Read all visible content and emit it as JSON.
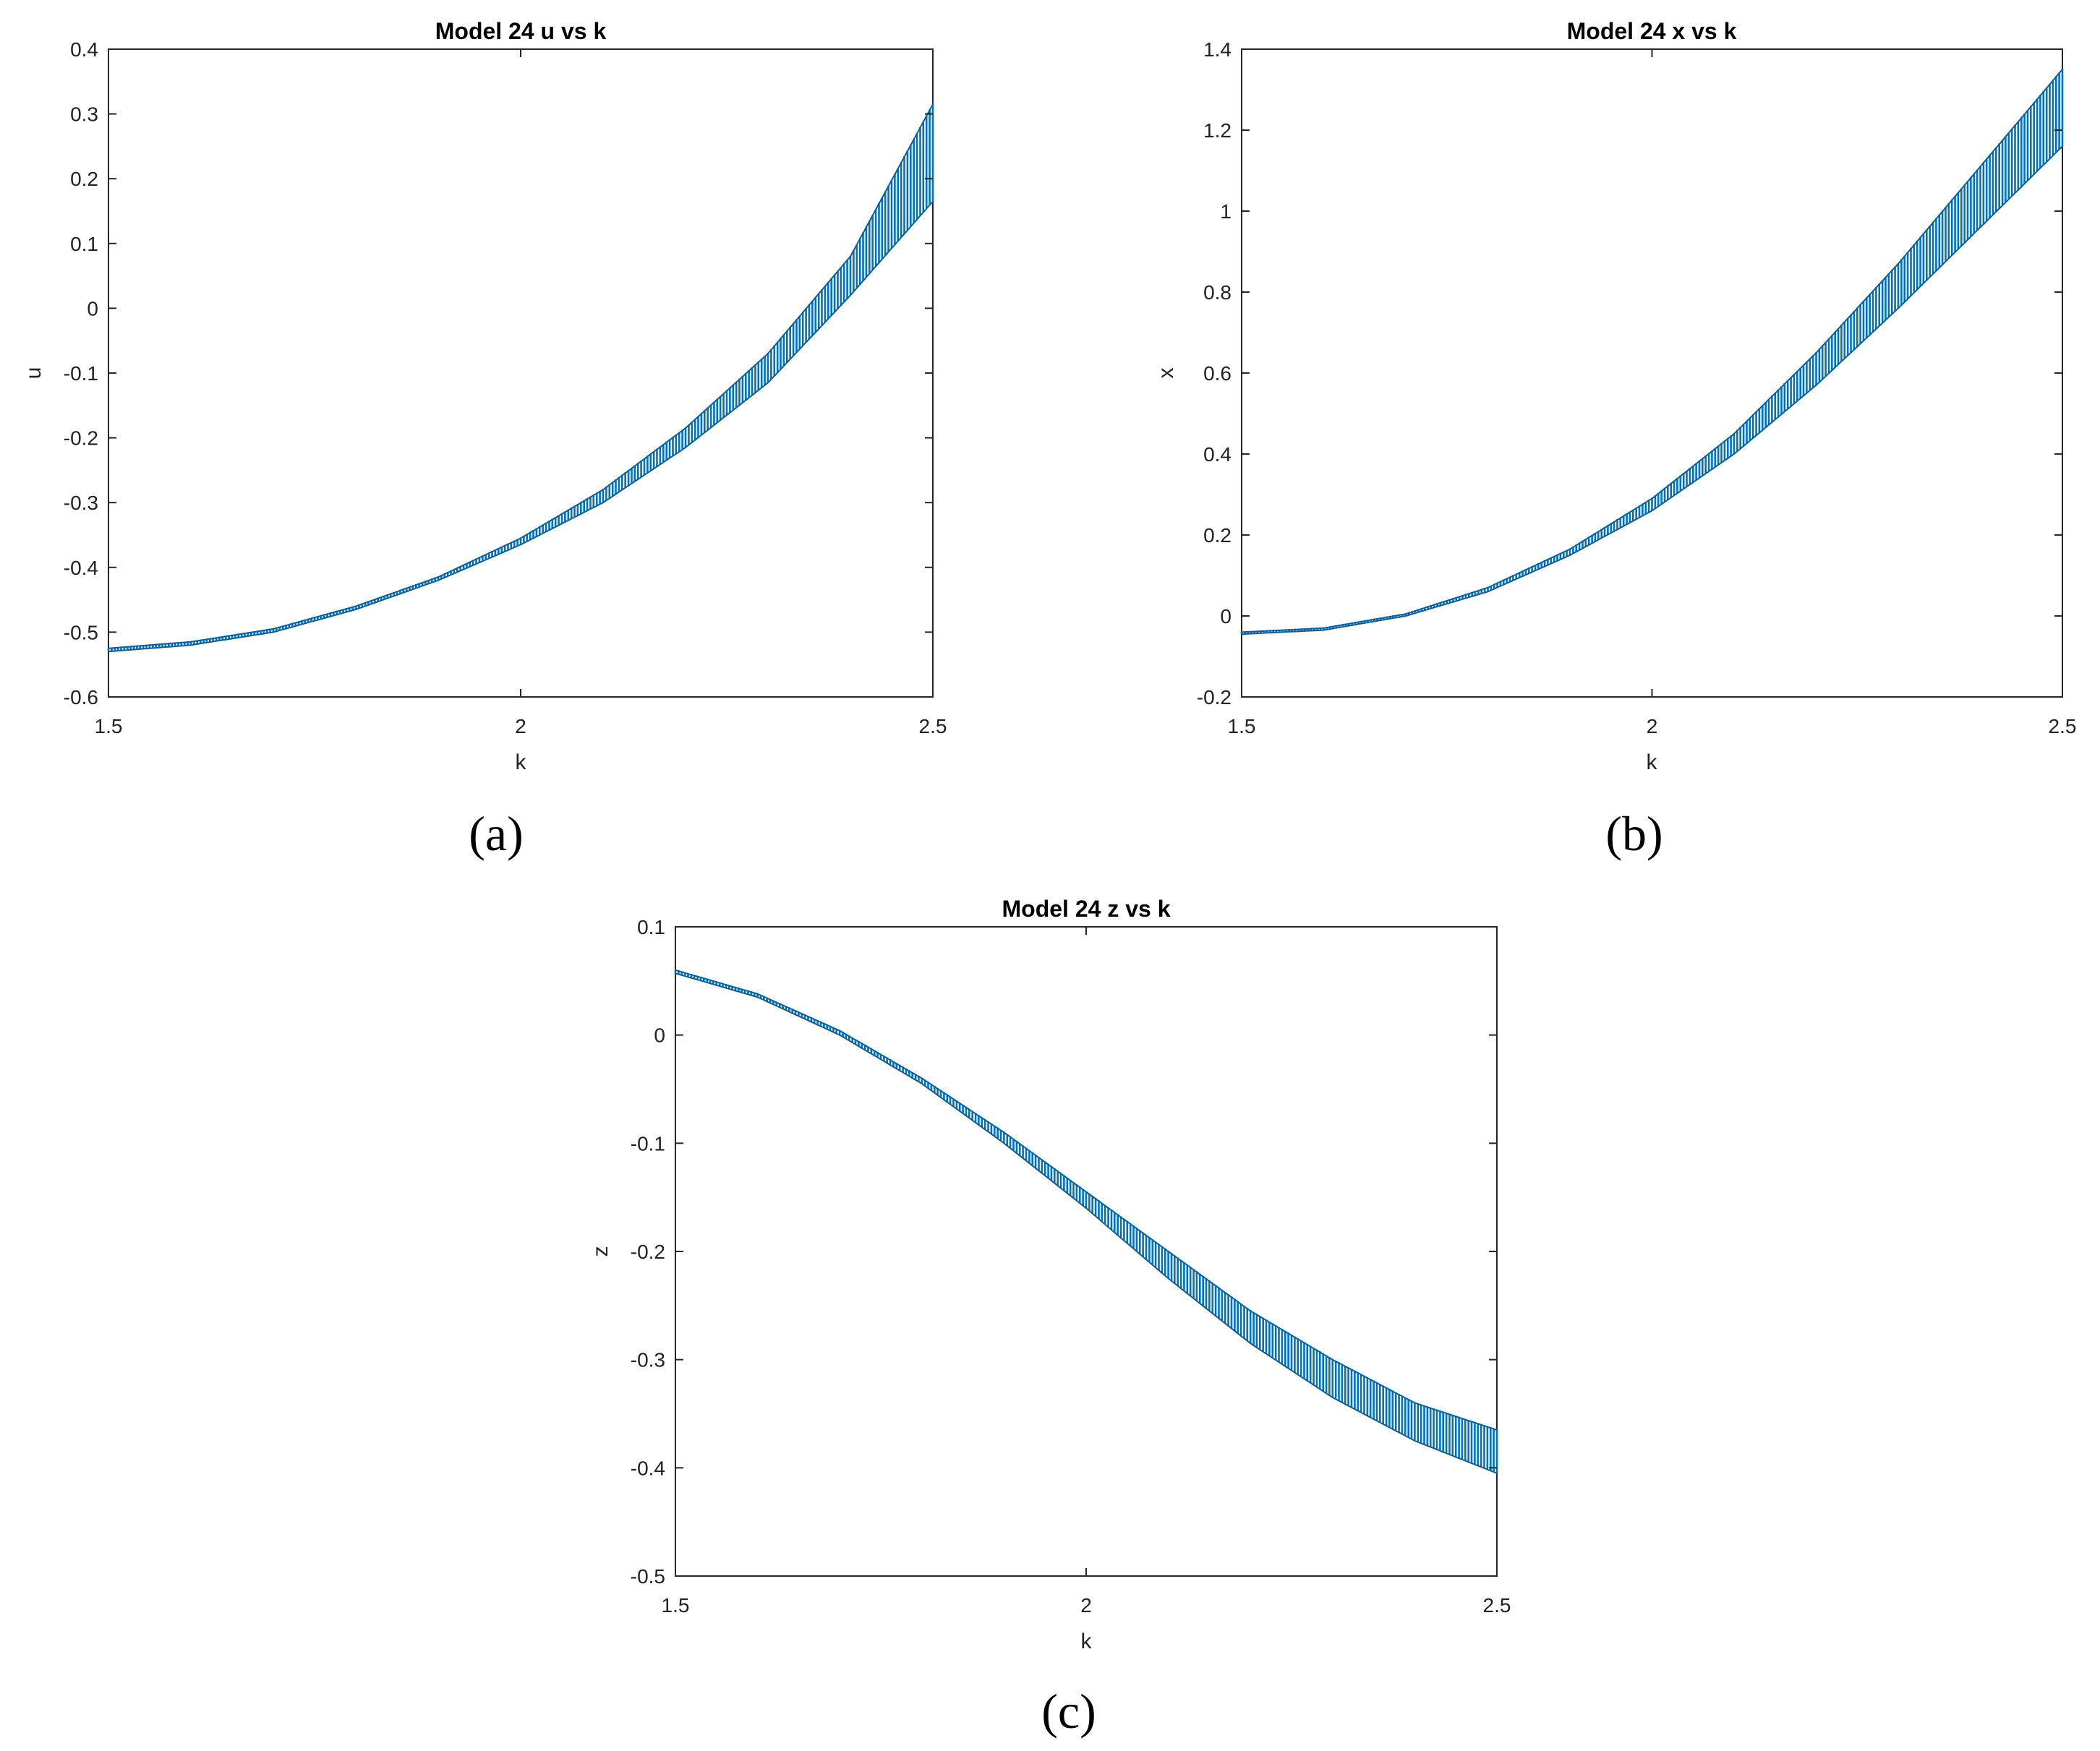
{
  "chart_data": [
    {
      "type": "line",
      "title": "Model 24 u vs k",
      "xlabel": "k",
      "ylabel": "u",
      "caption": "(a)",
      "xlim": [
        1.5,
        2.5
      ],
      "ylim": [
        -0.6,
        0.4
      ],
      "xticks": [
        "1.5",
        "2",
        "2.5"
      ],
      "yticks": [
        "-0.6",
        "-0.5",
        "-0.4",
        "-0.3",
        "-0.2",
        "-0.1",
        "0",
        "0.1",
        "0.2",
        "0.3",
        "0.4"
      ],
      "color": "#0072BD",
      "series": [
        {
          "role": "lower",
          "x": [
            1.5,
            1.6,
            1.7,
            1.8,
            1.9,
            2.0,
            2.1,
            2.2,
            2.3,
            2.4,
            2.5
          ],
          "y": [
            -0.53,
            -0.52,
            -0.5,
            -0.465,
            -0.42,
            -0.365,
            -0.3,
            -0.215,
            -0.115,
            0.02,
            0.165
          ]
        },
        {
          "role": "upper",
          "x": [
            1.5,
            1.6,
            1.7,
            1.8,
            1.9,
            2.0,
            2.1,
            2.2,
            2.3,
            2.4,
            2.5
          ],
          "y": [
            -0.525,
            -0.515,
            -0.495,
            -0.46,
            -0.415,
            -0.355,
            -0.28,
            -0.185,
            -0.07,
            0.08,
            0.315
          ]
        }
      ]
    },
    {
      "type": "line",
      "title": "Model 24 x vs k",
      "xlabel": "k",
      "ylabel": "x",
      "caption": "(b)",
      "xlim": [
        1.5,
        2.5
      ],
      "ylim": [
        -0.2,
        1.4
      ],
      "xticks": [
        "1.5",
        "2",
        "2.5"
      ],
      "yticks": [
        "-0.2",
        "0",
        "0.2",
        "0.4",
        "0.6",
        "0.8",
        "1",
        "1.2",
        "1.4"
      ],
      "color": "#0072BD",
      "series": [
        {
          "role": "lower",
          "x": [
            1.5,
            1.6,
            1.7,
            1.8,
            1.9,
            2.0,
            2.1,
            2.2,
            2.3,
            2.4,
            2.5
          ],
          "y": [
            -0.045,
            -0.035,
            0.0,
            0.06,
            0.15,
            0.26,
            0.4,
            0.57,
            0.76,
            0.96,
            1.16
          ]
        },
        {
          "role": "upper",
          "x": [
            1.5,
            1.6,
            1.7,
            1.8,
            1.9,
            2.0,
            2.1,
            2.2,
            2.3,
            2.4,
            2.5
          ],
          "y": [
            -0.04,
            -0.03,
            0.005,
            0.07,
            0.165,
            0.29,
            0.45,
            0.65,
            0.87,
            1.11,
            1.35
          ]
        }
      ]
    },
    {
      "type": "line",
      "title": "Model 24 z vs k",
      "xlabel": "k",
      "ylabel": "z",
      "caption": "(c)",
      "xlim": [
        1.5,
        2.5
      ],
      "ylim": [
        -0.5,
        0.1
      ],
      "xticks": [
        "1.5",
        "2",
        "2.5"
      ],
      "yticks": [
        "-0.5",
        "-0.4",
        "-0.3",
        "-0.2",
        "-0.1",
        "0",
        "0.1"
      ],
      "color": "#0072BD",
      "series": [
        {
          "role": "lower",
          "x": [
            1.5,
            1.6,
            1.7,
            1.8,
            1.9,
            2.0,
            2.1,
            2.2,
            2.3,
            2.4,
            2.5
          ],
          "y": [
            0.057,
            0.035,
            0.0,
            -0.045,
            -0.1,
            -0.16,
            -0.225,
            -0.285,
            -0.335,
            -0.375,
            -0.405
          ]
        },
        {
          "role": "upper",
          "x": [
            1.5,
            1.6,
            1.7,
            1.8,
            1.9,
            2.0,
            2.1,
            2.2,
            2.3,
            2.4,
            2.5
          ],
          "y": [
            0.06,
            0.038,
            0.004,
            -0.04,
            -0.09,
            -0.145,
            -0.2,
            -0.255,
            -0.3,
            -0.34,
            -0.365
          ]
        }
      ]
    }
  ]
}
